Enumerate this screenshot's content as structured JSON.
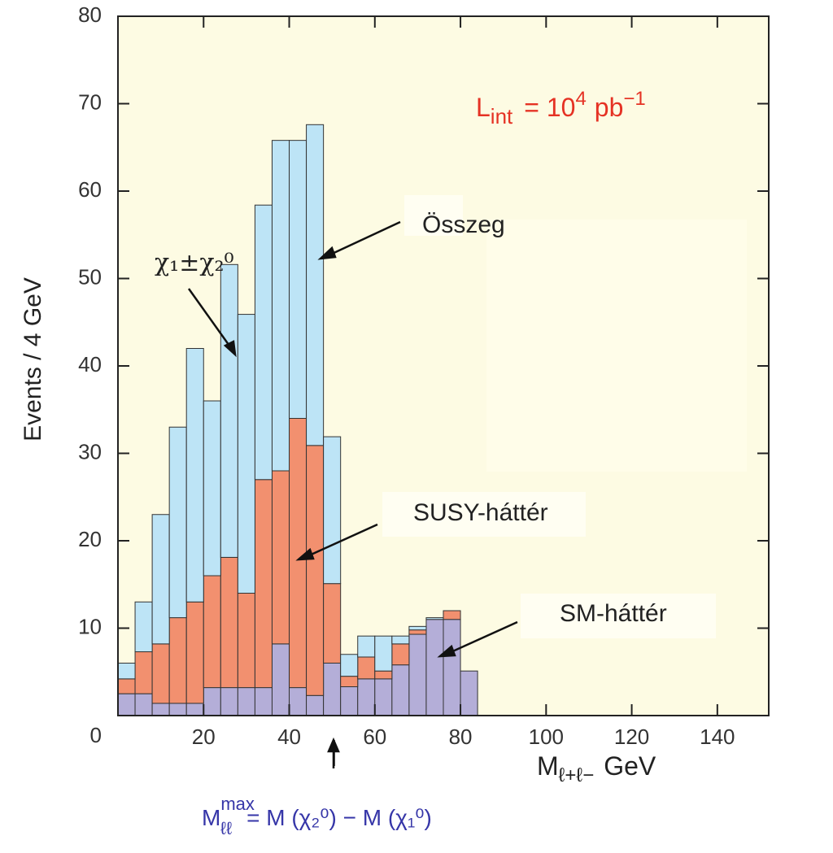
{
  "chart_data": {
    "type": "stacked_histogram",
    "y_label": "Events / 4 GeV",
    "x_label": {
      "base": "M",
      "sub": "ℓ+ℓ−",
      "unit": "GeV"
    },
    "bins": [
      0,
      4,
      8,
      12,
      16,
      20,
      24,
      28,
      32,
      36,
      40,
      44,
      48,
      52,
      56,
      60,
      64,
      68,
      72,
      76,
      80,
      84
    ],
    "series": [
      {
        "name": "SM-háttér",
        "color": "#b4aed8",
        "values": [
          2.5,
          2.5,
          1.4,
          1.4,
          1.4,
          3.2,
          3.2,
          3.2,
          3.2,
          8.2,
          3.2,
          2.3,
          6,
          3.3,
          4.2,
          4.2,
          5.8,
          9.3,
          11,
          11,
          5.1
        ]
      },
      {
        "name": "SUSY-háttér",
        "color": "#f2906f",
        "values": [
          1.7,
          4.8,
          6.8,
          9.8,
          11.6,
          12.8,
          14.9,
          10.8,
          23.8,
          19.8,
          30.8,
          28.6,
          9.1,
          1.2,
          2.5,
          0.9,
          2.4,
          0.5,
          0,
          1,
          0
        ]
      },
      {
        "name": "χ₁±χ₂⁰",
        "color": "#bde4f6",
        "values": [
          1.8,
          5.7,
          14.8,
          21.8,
          29,
          20,
          33.5,
          31.9,
          31.4,
          37.8,
          31.8,
          36.7,
          16.8,
          2.5,
          2.4,
          4,
          0.9,
          0.4,
          0.2,
          0,
          0
        ]
      }
    ],
    "sum_label": "Összeg",
    "lumi": {
      "base": "L",
      "sub": "int",
      "eq": "= 10",
      "sup": "4",
      "unit": "pb",
      "unit_sup": "−1"
    },
    "endpoint": {
      "x": 50.5,
      "base": "M",
      "sub": "ℓℓ",
      "sup": "max",
      "rest": "= M (χ₂⁰) − M (χ₁⁰)"
    },
    "xlim": [
      0,
      152
    ],
    "ylim": [
      0,
      80
    ],
    "xticks": [
      20,
      40,
      60,
      80,
      100,
      120,
      140
    ],
    "yticks": [
      0,
      10,
      20,
      30,
      40,
      50,
      60,
      70,
      80
    ]
  }
}
